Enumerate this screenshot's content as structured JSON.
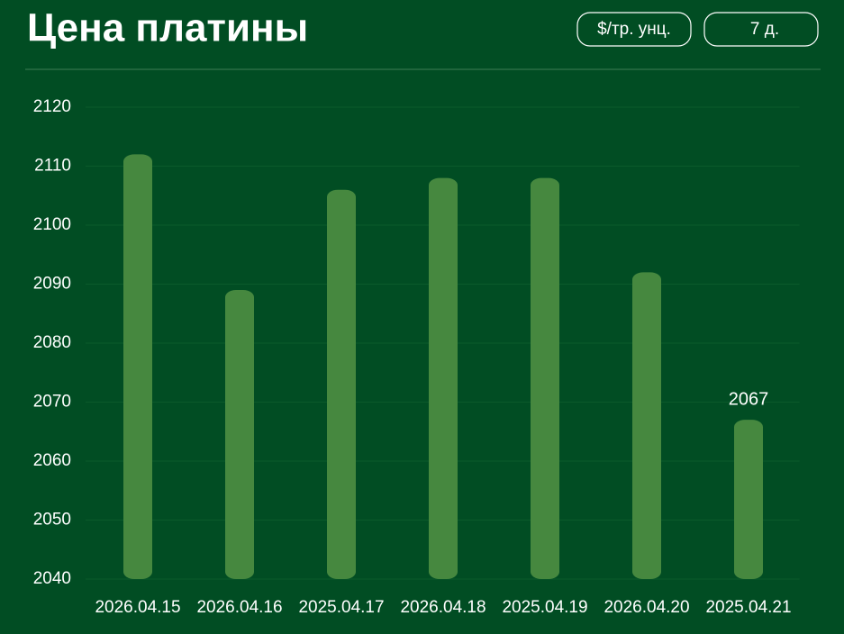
{
  "chart_data": {
    "type": "bar",
    "title": "Цена платины",
    "categories": [
      "2026.04.15",
      "2026.04.16",
      "2025.04.17",
      "2026.04.18",
      "2025.04.19",
      "2026.04.20",
      "2025.04.21"
    ],
    "values": [
      2112,
      2089,
      2106,
      2108,
      2108,
      2092,
      2067
    ],
    "color": "#46883f",
    "ylim": [
      2040,
      2120
    ],
    "yticks": [
      2040,
      2050,
      2060,
      2070,
      2080,
      2090,
      2100,
      2110,
      2120
    ],
    "grid": true
  },
  "controls": [
    "$/тр. унц.",
    "7 д."
  ]
}
